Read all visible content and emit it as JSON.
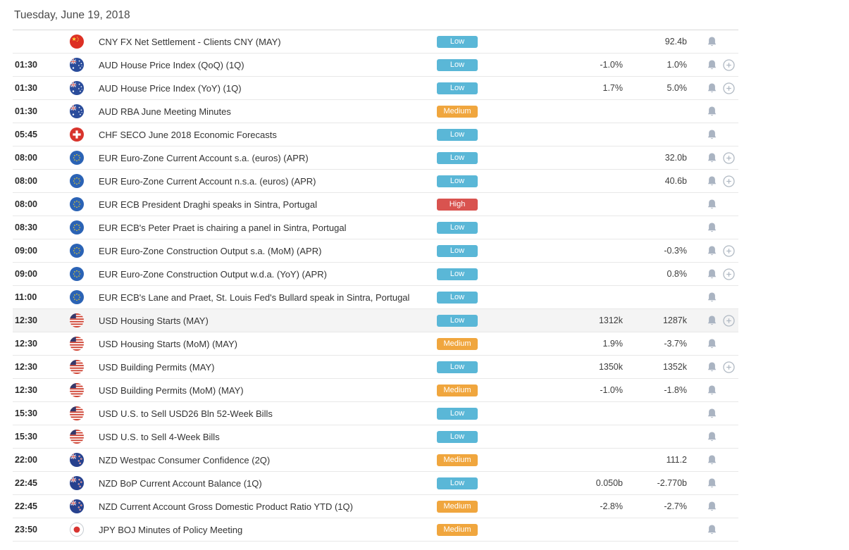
{
  "page": {
    "date_header": "Tuesday, June 19, 2018"
  },
  "colors": {
    "importance_low": "#5ab7d7",
    "importance_medium": "#f0a63e",
    "importance_high": "#d9534f",
    "bell_icon": "#aab4c2",
    "plus_icon": "#b0b9c3",
    "row_highlight": "#f4f4f4",
    "divider": "#e8e8e8"
  },
  "icons": {
    "bell": "alert-bell-icon",
    "plus": "add-to-watchlist-plus-icon"
  },
  "events": [
    {
      "time": "",
      "currency": "CNY",
      "flag": "cn",
      "title": "CNY FX Net Settlement - Clients CNY (MAY)",
      "importance": "Low",
      "forecast": "",
      "previous": "92.4b",
      "bell": true,
      "plus": false,
      "highlighted": false
    },
    {
      "time": "01:30",
      "currency": "AUD",
      "flag": "au",
      "title": "AUD House Price Index (QoQ) (1Q)",
      "importance": "Low",
      "forecast": "-1.0%",
      "previous": "1.0%",
      "bell": true,
      "plus": true,
      "highlighted": false
    },
    {
      "time": "01:30",
      "currency": "AUD",
      "flag": "au",
      "title": "AUD House Price Index (YoY) (1Q)",
      "importance": "Low",
      "forecast": "1.7%",
      "previous": "5.0%",
      "bell": true,
      "plus": true,
      "highlighted": false
    },
    {
      "time": "01:30",
      "currency": "AUD",
      "flag": "au",
      "title": "AUD RBA June Meeting Minutes",
      "importance": "Medium",
      "forecast": "",
      "previous": "",
      "bell": true,
      "plus": false,
      "highlighted": false
    },
    {
      "time": "05:45",
      "currency": "CHF",
      "flag": "ch",
      "title": "CHF SECO June 2018 Economic Forecasts",
      "importance": "Low",
      "forecast": "",
      "previous": "",
      "bell": true,
      "plus": false,
      "highlighted": false
    },
    {
      "time": "08:00",
      "currency": "EUR",
      "flag": "eu",
      "title": "EUR Euro-Zone Current Account s.a. (euros) (APR)",
      "importance": "Low",
      "forecast": "",
      "previous": "32.0b",
      "bell": true,
      "plus": true,
      "highlighted": false
    },
    {
      "time": "08:00",
      "currency": "EUR",
      "flag": "eu",
      "title": "EUR Euro-Zone Current Account n.s.a. (euros) (APR)",
      "importance": "Low",
      "forecast": "",
      "previous": "40.6b",
      "bell": true,
      "plus": true,
      "highlighted": false
    },
    {
      "time": "08:00",
      "currency": "EUR",
      "flag": "eu",
      "title": "EUR ECB President Draghi speaks in Sintra, Portugal",
      "importance": "High",
      "forecast": "",
      "previous": "",
      "bell": true,
      "plus": false,
      "highlighted": false
    },
    {
      "time": "08:30",
      "currency": "EUR",
      "flag": "eu",
      "title": "EUR ECB's Peter Praet is chairing a panel in Sintra, Portugal",
      "importance": "Low",
      "forecast": "",
      "previous": "",
      "bell": true,
      "plus": false,
      "highlighted": false
    },
    {
      "time": "09:00",
      "currency": "EUR",
      "flag": "eu",
      "title": "EUR Euro-Zone Construction Output s.a. (MoM) (APR)",
      "importance": "Low",
      "forecast": "",
      "previous": "-0.3%",
      "bell": true,
      "plus": true,
      "highlighted": false
    },
    {
      "time": "09:00",
      "currency": "EUR",
      "flag": "eu",
      "title": "EUR Euro-Zone Construction Output w.d.a. (YoY) (APR)",
      "importance": "Low",
      "forecast": "",
      "previous": "0.8%",
      "bell": true,
      "plus": true,
      "highlighted": false
    },
    {
      "time": "11:00",
      "currency": "EUR",
      "flag": "eu",
      "title": "EUR ECB's Lane and Praet, St. Louis Fed's Bullard speak in Sintra, Portugal",
      "importance": "Low",
      "forecast": "",
      "previous": "",
      "bell": true,
      "plus": false,
      "highlighted": false
    },
    {
      "time": "12:30",
      "currency": "USD",
      "flag": "us",
      "title": "USD Housing Starts (MAY)",
      "importance": "Low",
      "forecast": "1312k",
      "previous": "1287k",
      "bell": true,
      "plus": true,
      "highlighted": true
    },
    {
      "time": "12:30",
      "currency": "USD",
      "flag": "us",
      "title": "USD Housing Starts (MoM) (MAY)",
      "importance": "Medium",
      "forecast": "1.9%",
      "previous": "-3.7%",
      "bell": true,
      "plus": false,
      "highlighted": false
    },
    {
      "time": "12:30",
      "currency": "USD",
      "flag": "us",
      "title": "USD Building Permits (MAY)",
      "importance": "Low",
      "forecast": "1350k",
      "previous": "1352k",
      "bell": true,
      "plus": true,
      "highlighted": false
    },
    {
      "time": "12:30",
      "currency": "USD",
      "flag": "us",
      "title": "USD Building Permits (MoM) (MAY)",
      "importance": "Medium",
      "forecast": "-1.0%",
      "previous": "-1.8%",
      "bell": true,
      "plus": false,
      "highlighted": false
    },
    {
      "time": "15:30",
      "currency": "USD",
      "flag": "us",
      "title": "USD U.S. to Sell USD26 Bln 52-Week Bills",
      "importance": "Low",
      "forecast": "",
      "previous": "",
      "bell": true,
      "plus": false,
      "highlighted": false
    },
    {
      "time": "15:30",
      "currency": "USD",
      "flag": "us",
      "title": "USD U.S. to Sell 4-Week Bills",
      "importance": "Low",
      "forecast": "",
      "previous": "",
      "bell": true,
      "plus": false,
      "highlighted": false
    },
    {
      "time": "22:00",
      "currency": "NZD",
      "flag": "nz",
      "title": "NZD Westpac Consumer Confidence (2Q)",
      "importance": "Medium",
      "forecast": "",
      "previous": "111.2",
      "bell": true,
      "plus": false,
      "highlighted": false
    },
    {
      "time": "22:45",
      "currency": "NZD",
      "flag": "nz",
      "title": "NZD BoP Current Account Balance (1Q)",
      "importance": "Low",
      "forecast": "0.050b",
      "previous": "-2.770b",
      "bell": true,
      "plus": false,
      "highlighted": false
    },
    {
      "time": "22:45",
      "currency": "NZD",
      "flag": "nz",
      "title": "NZD Current Account Gross Domestic Product Ratio YTD (1Q)",
      "importance": "Medium",
      "forecast": "-2.8%",
      "previous": "-2.7%",
      "bell": true,
      "plus": false,
      "highlighted": false
    },
    {
      "time": "23:50",
      "currency": "JPY",
      "flag": "jp",
      "title": "JPY BOJ Minutes of Policy Meeting",
      "importance": "Medium",
      "forecast": "",
      "previous": "",
      "bell": true,
      "plus": false,
      "highlighted": false
    }
  ]
}
